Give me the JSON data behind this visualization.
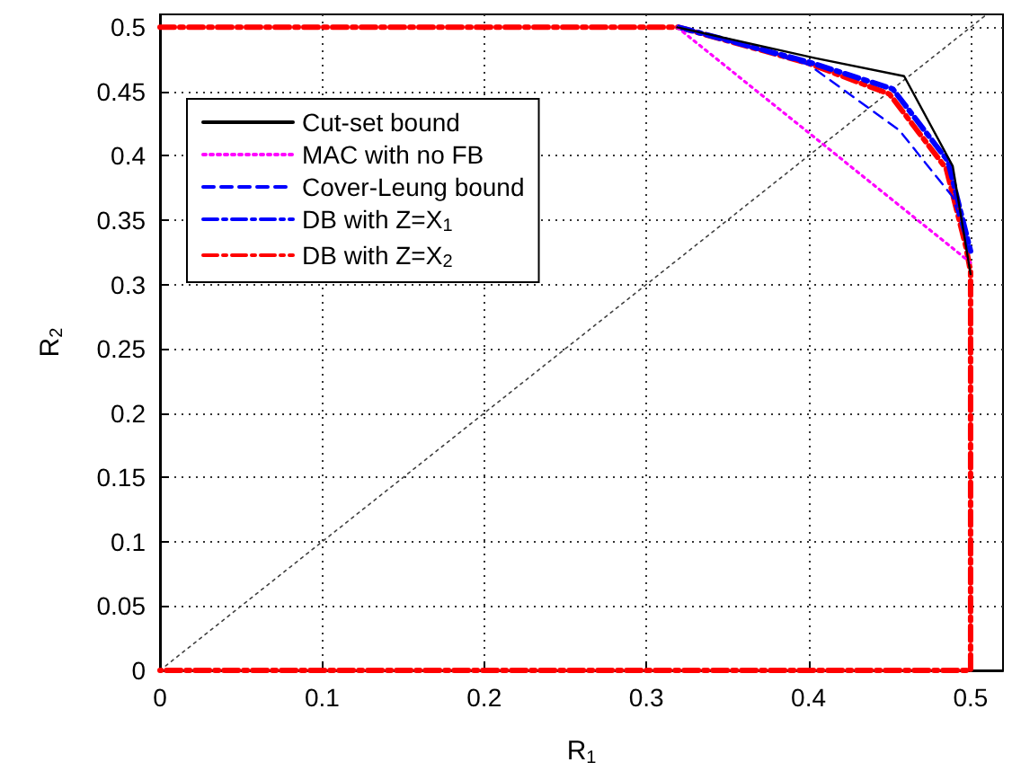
{
  "chart_data": {
    "type": "line",
    "xlabel": "R$_{1}$",
    "ylabel": "R$_{2}$",
    "xlim": [
      0,
      0.52
    ],
    "ylim": [
      0,
      0.51
    ],
    "xticks": [
      0,
      0.1,
      0.2,
      0.3,
      0.4,
      0.5
    ],
    "yticks": [
      0,
      0.05,
      0.1,
      0.15,
      0.2,
      0.25,
      0.3,
      0.35,
      0.4,
      0.45,
      0.5
    ],
    "grid": true,
    "legend": "top left",
    "marker": "none",
    "series": [
      {
        "name": "Cut-set bound",
        "color": "#000000",
        "line_style": "solid",
        "x": [
          0.319,
          0.404,
          0.459,
          0.489,
          0.5
        ],
        "values": [
          0.5,
          0.476,
          0.462,
          0.392,
          0.308
        ]
      },
      {
        "name": "MAC with no FB",
        "color": "#ff00ff",
        "line_style": "dotted",
        "x": [
          0.319,
          0.5
        ],
        "values": [
          0.5,
          0.317
        ]
      },
      {
        "name": "Cover-Leung bound",
        "color": "#0000ff",
        "line_style": "dashed",
        "x": [
          0.32,
          0.4,
          0.456,
          0.489,
          0.5
        ],
        "values": [
          0.5,
          0.471,
          0.42,
          0.368,
          0.322
        ]
      },
      {
        "name": "DB with Z=X$_{1}$",
        "color": "#0000ff",
        "line_style": "dashed",
        "x": [
          0.32,
          0.4,
          0.452,
          0.486,
          0.5
        ],
        "values": [
          0.5,
          0.473,
          0.452,
          0.396,
          0.326
        ]
      },
      {
        "name": "DB with Z=X$_{2}$",
        "color": "#ff0000",
        "line_style": "dashed",
        "x": [
          0,
          0.32,
          0.4,
          0.45,
          0.485,
          0.497,
          0.5,
          0.5,
          0
        ],
        "values": [
          0.5,
          0.5,
          0.472,
          0.448,
          0.39,
          0.33,
          0.31,
          0,
          0
        ]
      },
      {
        "color": "#404040",
        "line_style": "dotted",
        "x": [
          0,
          0.51
        ],
        "values": [
          0,
          0.51
        ]
      }
    ]
  }
}
